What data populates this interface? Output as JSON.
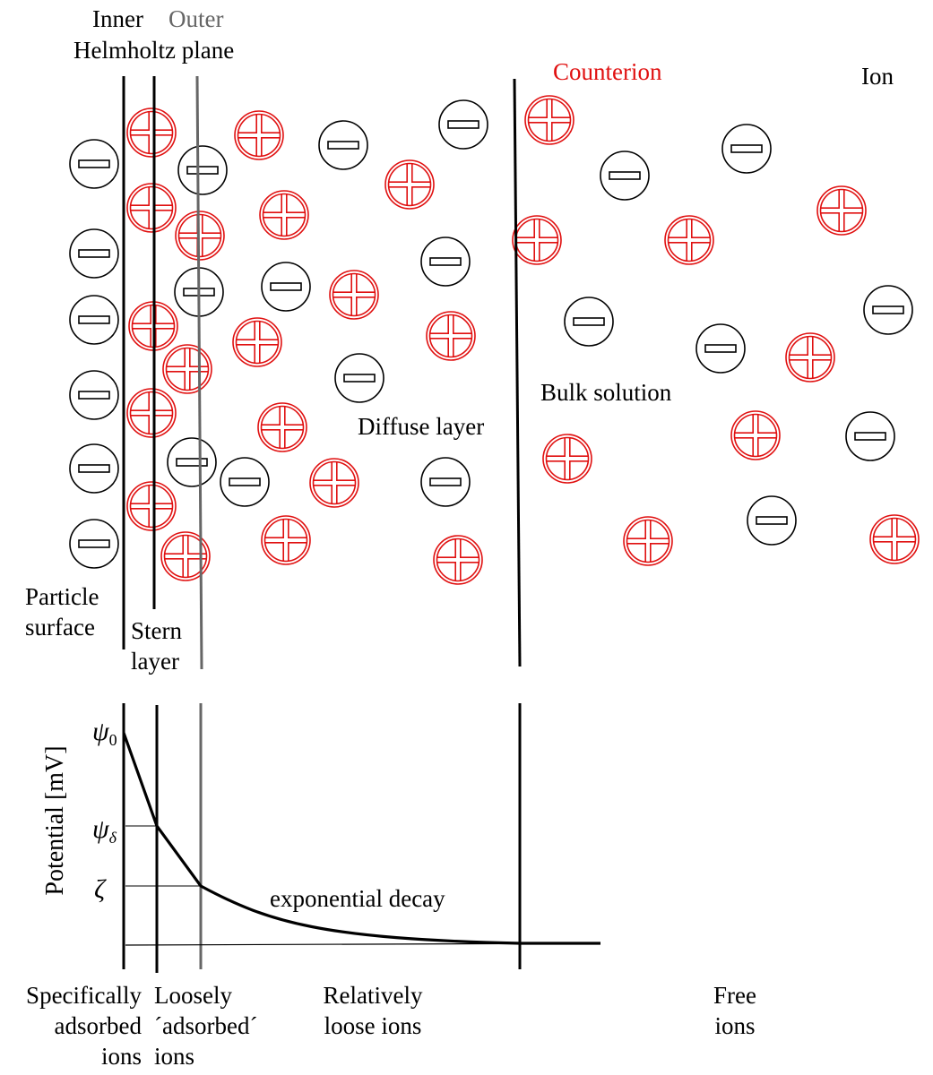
{
  "colors": {
    "counterion": "#e01010",
    "ion": "#000000",
    "outer_plane": "#666666"
  },
  "labels": {
    "inner": "Inner",
    "outer": "Outer",
    "helmholtz": "Helmholtz",
    "plane": "plane",
    "counterion": "Counterion",
    "ion": "Ion",
    "bulk_solution": "Bulk solution",
    "diffuse_layer": "Diffuse layer",
    "particle": "Particle",
    "surface": "surface",
    "stern": "Stern",
    "layer": "layer",
    "exponential_decay": "exponential decay",
    "y_axis": "Potential [mV]"
  },
  "potentials": {
    "psi": "ψ",
    "psi0_sub": "0",
    "psid_sub": "δ",
    "zeta": "ζ"
  },
  "regions": {
    "specifically": [
      "Specifically",
      "adsorbed",
      "ions"
    ],
    "loosely": [
      "Loosely",
      "´adsorbed´",
      "ions"
    ],
    "relatively": [
      "Relatively",
      "loose ions"
    ],
    "free": [
      "Free",
      "ions"
    ]
  }
}
